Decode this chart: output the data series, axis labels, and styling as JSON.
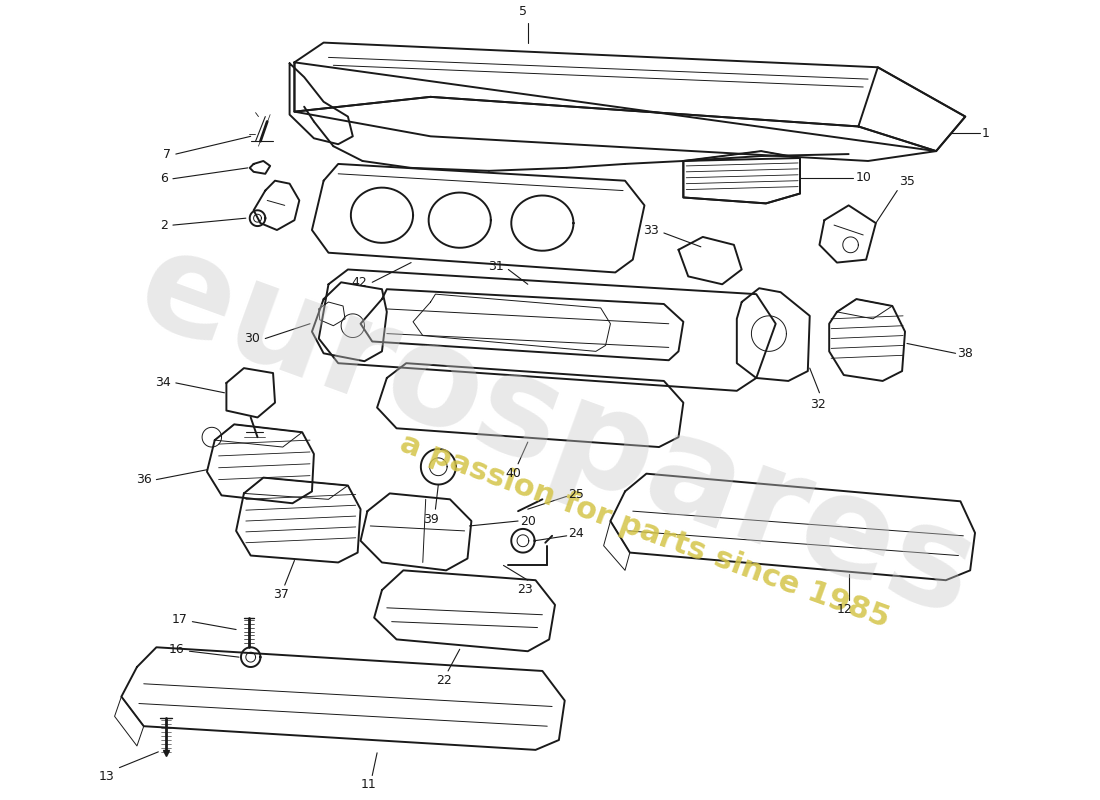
{
  "bg_color": "#ffffff",
  "line_color": "#1a1a1a",
  "wm_color1": "#c8c8c8",
  "wm_color2": "#d4c448",
  "watermark1": "eurospares",
  "watermark2": "a passion for parts since 1985"
}
